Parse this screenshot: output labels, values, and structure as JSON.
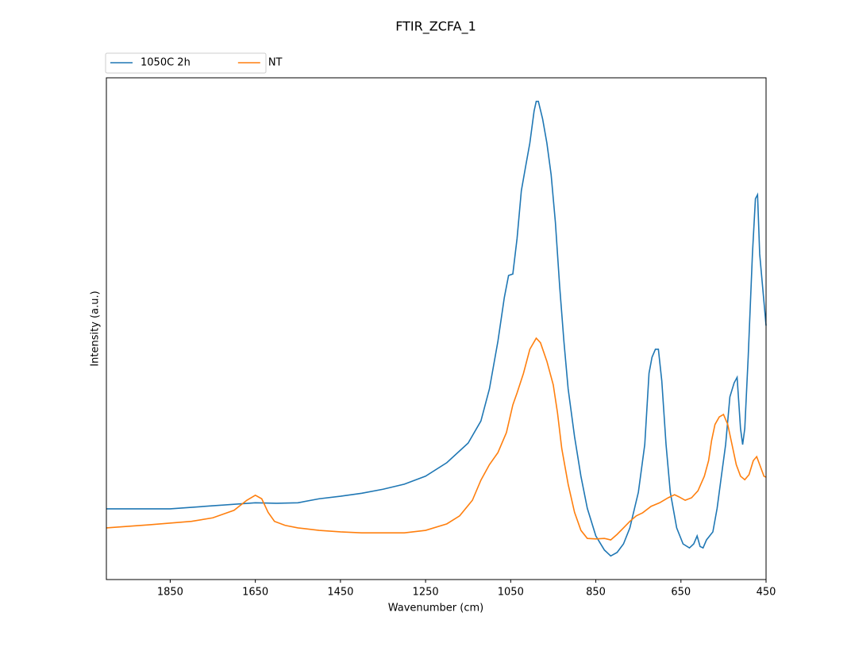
{
  "chart_data": {
    "type": "line",
    "title": "FTIR_ZCFA_1",
    "xlabel": "Wavenumber (cm)",
    "ylabel": "Intensity (a.u.)",
    "xlim": [
      2000,
      450
    ],
    "xticks": [
      1850,
      1650,
      1450,
      1250,
      1050,
      850,
      650,
      450
    ],
    "ylim": [
      0,
      1
    ],
    "legend": "upper left outside",
    "grid": false,
    "series": [
      {
        "name": "1050C 2h",
        "color": "#1f77b4",
        "x": [
          2000,
          1850,
          1750,
          1650,
          1600,
          1550,
          1500,
          1450,
          1400,
          1350,
          1300,
          1250,
          1200,
          1150,
          1120,
          1100,
          1080,
          1065,
          1055,
          1045,
          1035,
          1025,
          1015,
          1005,
          995,
          990,
          985,
          975,
          965,
          955,
          945,
          935,
          925,
          915,
          900,
          885,
          870,
          850,
          830,
          815,
          800,
          785,
          770,
          750,
          735,
          725,
          718,
          710,
          703,
          695,
          685,
          675,
          660,
          645,
          630,
          620,
          612,
          605,
          598,
          590,
          575,
          565,
          555,
          545,
          535,
          525,
          518,
          510,
          505,
          500,
          492,
          482,
          475,
          470,
          465,
          455,
          450
        ],
        "values": [
          0.141,
          0.141,
          0.147,
          0.153,
          0.152,
          0.153,
          0.161,
          0.166,
          0.172,
          0.18,
          0.19,
          0.206,
          0.233,
          0.272,
          0.316,
          0.38,
          0.475,
          0.562,
          0.606,
          0.609,
          0.68,
          0.775,
          0.823,
          0.87,
          0.934,
          0.953,
          0.953,
          0.918,
          0.87,
          0.807,
          0.712,
          0.585,
          0.475,
          0.38,
          0.285,
          0.206,
          0.142,
          0.087,
          0.059,
          0.047,
          0.054,
          0.071,
          0.103,
          0.174,
          0.269,
          0.411,
          0.443,
          0.459,
          0.459,
          0.396,
          0.269,
          0.174,
          0.103,
          0.071,
          0.063,
          0.071,
          0.087,
          0.066,
          0.063,
          0.079,
          0.095,
          0.142,
          0.206,
          0.269,
          0.364,
          0.392,
          0.403,
          0.301,
          0.269,
          0.301,
          0.443,
          0.649,
          0.759,
          0.767,
          0.649,
          0.554,
          0.506
        ]
      },
      {
        "name": "NT",
        "color": "#ff7f0e",
        "x": [
          2000,
          1900,
          1800,
          1750,
          1700,
          1670,
          1650,
          1635,
          1620,
          1605,
          1580,
          1550,
          1500,
          1450,
          1400,
          1350,
          1300,
          1250,
          1200,
          1170,
          1140,
          1120,
          1100,
          1080,
          1060,
          1045,
          1035,
          1020,
          1005,
          990,
          980,
          965,
          950,
          940,
          930,
          915,
          900,
          885,
          870,
          850,
          830,
          815,
          800,
          785,
          770,
          755,
          740,
          720,
          700,
          680,
          665,
          655,
          640,
          625,
          610,
          595,
          585,
          578,
          570,
          560,
          550,
          540,
          530,
          520,
          510,
          500,
          490,
          480,
          472,
          465,
          455,
          450
        ],
        "values": [
          0.103,
          0.109,
          0.116,
          0.123,
          0.138,
          0.158,
          0.168,
          0.161,
          0.134,
          0.116,
          0.108,
          0.103,
          0.098,
          0.095,
          0.093,
          0.093,
          0.093,
          0.098,
          0.111,
          0.127,
          0.158,
          0.198,
          0.229,
          0.253,
          0.293,
          0.348,
          0.372,
          0.411,
          0.459,
          0.481,
          0.472,
          0.435,
          0.388,
          0.332,
          0.261,
          0.19,
          0.134,
          0.098,
          0.082,
          0.081,
          0.082,
          0.079,
          0.09,
          0.103,
          0.116,
          0.127,
          0.133,
          0.146,
          0.153,
          0.163,
          0.169,
          0.165,
          0.158,
          0.163,
          0.177,
          0.206,
          0.237,
          0.277,
          0.309,
          0.324,
          0.329,
          0.309,
          0.269,
          0.229,
          0.206,
          0.199,
          0.209,
          0.237,
          0.245,
          0.229,
          0.206,
          0.204
        ]
      }
    ]
  }
}
